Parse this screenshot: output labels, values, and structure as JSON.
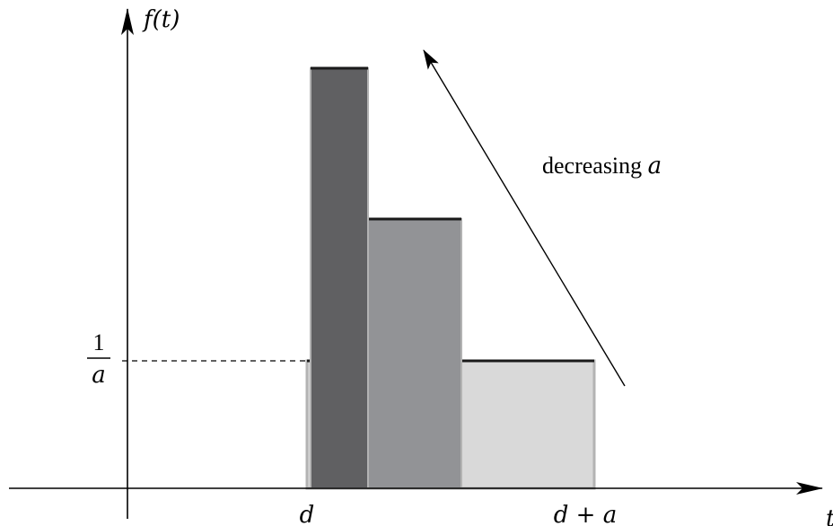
{
  "diagram": {
    "y_axis_label": "f(t)",
    "x_axis_label": "t",
    "x_label_d": "d",
    "x_label_d_plus_a": "d + a",
    "y_label_numerator": "1",
    "y_label_denominator": "a",
    "annotation_text": "decreasing ",
    "annotation_var": "a",
    "colors": {
      "axis": "#000000",
      "bar_wide": "#d9d9d9",
      "bar_medium": "#929396",
      "bar_narrow": "#606062",
      "bar_edge": "#b3b3b3",
      "top_edge": "#1a1a1a"
    }
  }
}
